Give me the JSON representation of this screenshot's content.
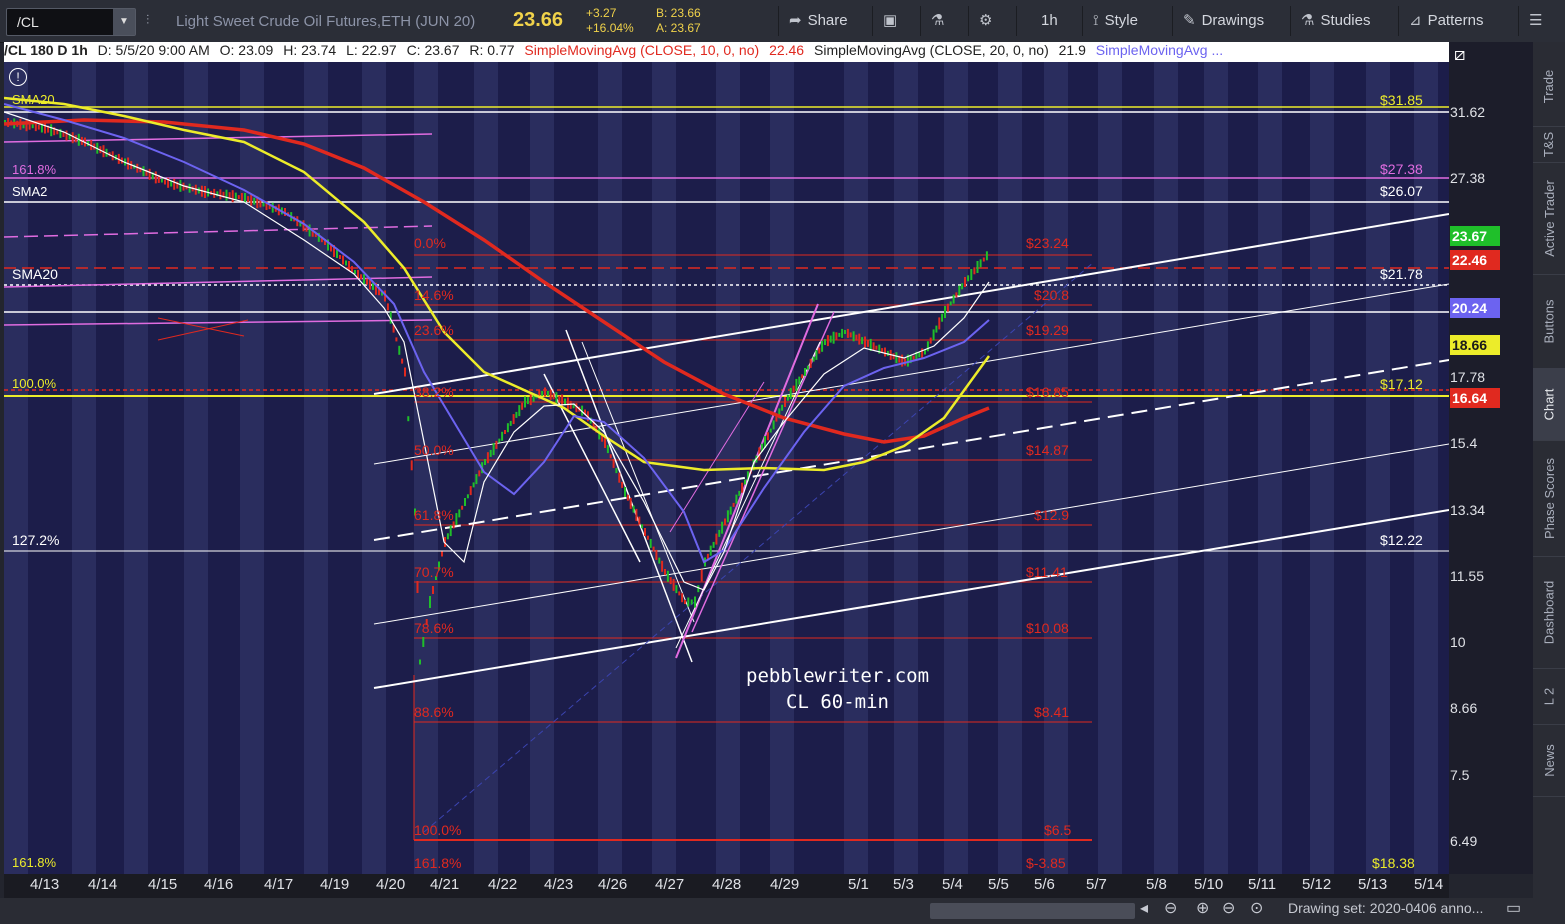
{
  "toolbar": {
    "symbol": "/CL",
    "instrument_title": "Light Sweet Crude Oil Futures,ETH (JUN 20)",
    "last_price": "23.66",
    "change": "+3.27",
    "change_pct": "+16.04%",
    "bid": "B: 23.66",
    "ask": "A: 23.67",
    "share_label": "Share",
    "timeframe_label": "1h",
    "style_label": "Style",
    "drawings_label": "Drawings",
    "studies_label": "Studies",
    "patterns_label": "Patterns"
  },
  "header": {
    "ticker": "/CL 180 D 1h",
    "date": "D: 5/5/20 9:00 AM",
    "open": "O: 23.09",
    "high": "H: 23.74",
    "low": "L: 22.97",
    "close": "C: 23.67",
    "range": "R: 0.77",
    "sma10_label": "SimpleMovingAvg (CLOSE, 10, 0, no)",
    "sma10_value": "22.46",
    "sma20_label": "SimpleMovingAvg (CLOSE, 20, 0, no)",
    "sma20_value": "21.9",
    "sma50_label": "SimpleMovingAvg ..."
  },
  "chart_labels": {
    "top_left_overlap": "SMA20",
    "fib_161_left": "161.8%",
    "sma20_mid": "SMA2",
    "sma20_label": "SMA20",
    "ext_127": "127.2%",
    "hundred_left": "100.0%",
    "bottom_left": "161.8%",
    "right_3185": "$31.85",
    "right_2738": "$27.38",
    "right_2607": "$26.07",
    "right_2178": "$21.78",
    "right_1712": "$17.12",
    "right_1222": "$12.22",
    "right_bottom": "$18.38"
  },
  "fib_levels": [
    {
      "pct": "0.0%",
      "price": "$23.24"
    },
    {
      "pct": "14.6%",
      "price": "$20.8"
    },
    {
      "pct": "23.6%",
      "price": "$19.29"
    },
    {
      "pct": "38.2%",
      "price": "$16.85"
    },
    {
      "pct": "50.0%",
      "price": "$14.87"
    },
    {
      "pct": "61.8%",
      "price": "$12.9"
    },
    {
      "pct": "70.7%",
      "price": "$11.41"
    },
    {
      "pct": "78.6%",
      "price": "$10.08"
    },
    {
      "pct": "88.6%",
      "price": "$8.41"
    },
    {
      "pct": "100.0%",
      "price": "$6.5"
    },
    {
      "pct": "161.8%",
      "price": "$-3.85"
    }
  ],
  "watermark": {
    "line1": "pebblewriter.com",
    "line2": "CL  60-min"
  },
  "y_axis": {
    "ticks": [
      "31.62",
      "27.38",
      "17.78",
      "15.4",
      "13.34",
      "11.55",
      "10",
      "8.66",
      "7.5",
      "6.49"
    ],
    "badges": [
      {
        "value": "23.67",
        "bg": "#1fbf2a",
        "fg": "#ffffff"
      },
      {
        "value": "22.46",
        "bg": "#e0291f",
        "fg": "#ffffff"
      },
      {
        "value": "20.24",
        "bg": "#6c63f0",
        "fg": "#ffffff"
      },
      {
        "value": "18.66",
        "bg": "#ecec2a",
        "fg": "#1a1a1a"
      },
      {
        "value": "16.64",
        "bg": "#e0291f",
        "fg": "#ffffff"
      }
    ]
  },
  "x_axis": [
    "4/13",
    "4/14",
    "4/15",
    "4/16",
    "4/17",
    "4/19",
    "4/20",
    "4/21",
    "4/22",
    "4/23",
    "4/26",
    "4/27",
    "4/28",
    "4/29",
    "5/1",
    "5/3",
    "5/4",
    "5/5",
    "5/6",
    "5/7",
    "5/8",
    "5/10",
    "5/11",
    "5/12",
    "5/13",
    "5/14"
  ],
  "side_tabs": [
    "Trade",
    "T&S",
    "Active Trader",
    "Buttons",
    "Chart",
    "Phase Scores",
    "Dashboard",
    "L 2",
    "News"
  ],
  "drawing_set": "Drawing set: 2020-0406 anno...",
  "colors": {
    "bg": "#1c1d4a",
    "session_band": "#2a2d5e",
    "sma10": "#e0291f",
    "sma20": "#ffffff",
    "sma50": "#6c63f0",
    "sma100": "#ecec2a",
    "fib": "#e0291f"
  }
}
